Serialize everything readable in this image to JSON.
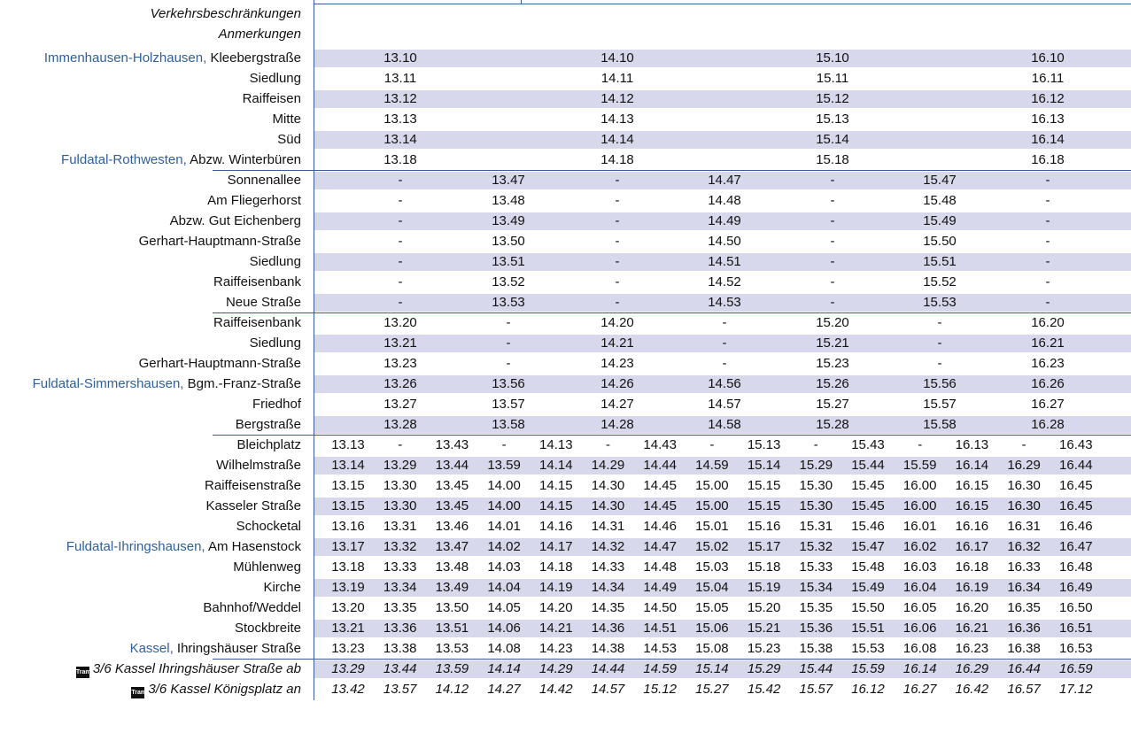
{
  "header": {
    "restrictions": "Verkehrsbeschränkungen",
    "notes": "Anmerkungen"
  },
  "tram_icon": "tram-icon",
  "colors": {
    "band": "#d7d8eb",
    "town": "#2f5f9e",
    "rule": "#3a5f98"
  },
  "rows": [
    {
      "town": "Immenhausen-Holzhausen, ",
      "stop": "Kleebergstraße",
      "mode": "A",
      "times": [
        "13.10",
        "14.10",
        "15.10",
        "16.10"
      ]
    },
    {
      "town": "",
      "stop": "Siedlung",
      "mode": "A",
      "times": [
        "13.11",
        "14.11",
        "15.11",
        "16.11"
      ]
    },
    {
      "town": "",
      "stop": "Raiffeisen",
      "mode": "A",
      "times": [
        "13.12",
        "14.12",
        "15.12",
        "16.12"
      ]
    },
    {
      "town": "",
      "stop": "Mitte",
      "mode": "A",
      "times": [
        "13.13",
        "14.13",
        "15.13",
        "16.13"
      ]
    },
    {
      "town": "",
      "stop": "Süd",
      "mode": "A",
      "times": [
        "13.14",
        "14.14",
        "15.14",
        "16.14"
      ]
    },
    {
      "town": "Fuldatal-Rothwesten, ",
      "stop": "Abzw. Winterbüren",
      "mode": "A",
      "times": [
        "13.18",
        "14.18",
        "15.18",
        "16.18"
      ],
      "sep": true
    },
    {
      "town": "",
      "stop": "Sonnenallee",
      "mode": "B",
      "times": [
        "-",
        "13.47",
        "-",
        "14.47",
        "-",
        "15.47",
        "-"
      ]
    },
    {
      "town": "",
      "stop": "Am Fliegerhorst",
      "mode": "B",
      "times": [
        "-",
        "13.48",
        "-",
        "14.48",
        "-",
        "15.48",
        "-"
      ]
    },
    {
      "town": "",
      "stop": "Abzw. Gut Eichenberg",
      "mode": "B",
      "times": [
        "-",
        "13.49",
        "-",
        "14.49",
        "-",
        "15.49",
        "-"
      ]
    },
    {
      "town": "",
      "stop": "Gerhart-Hauptmann-Straße",
      "mode": "B",
      "times": [
        "-",
        "13.50",
        "-",
        "14.50",
        "-",
        "15.50",
        "-"
      ]
    },
    {
      "town": "",
      "stop": "Siedlung",
      "mode": "B",
      "times": [
        "-",
        "13.51",
        "-",
        "14.51",
        "-",
        "15.51",
        "-"
      ]
    },
    {
      "town": "",
      "stop": "Raiffeisenbank",
      "mode": "B",
      "times": [
        "-",
        "13.52",
        "-",
        "14.52",
        "-",
        "15.52",
        "-"
      ]
    },
    {
      "town": "",
      "stop": "Neue Straße",
      "mode": "B",
      "times": [
        "-",
        "13.53",
        "-",
        "14.53",
        "-",
        "15.53",
        "-"
      ],
      "sep": true
    },
    {
      "town": "",
      "stop": "Raiffeisenbank",
      "mode": "B",
      "times": [
        "13.20",
        "-",
        "14.20",
        "-",
        "15.20",
        "-",
        "16.20"
      ]
    },
    {
      "town": "",
      "stop": "Siedlung",
      "mode": "B",
      "times": [
        "13.21",
        "-",
        "14.21",
        "-",
        "15.21",
        "-",
        "16.21"
      ]
    },
    {
      "town": "",
      "stop": "Gerhart-Hauptmann-Straße",
      "mode": "B",
      "times": [
        "13.23",
        "-",
        "14.23",
        "-",
        "15.23",
        "-",
        "16.23"
      ]
    },
    {
      "town": "Fuldatal-Simmershausen, ",
      "stop": "Bgm.-Franz-Straße",
      "mode": "B",
      "times": [
        "13.26",
        "13.56",
        "14.26",
        "14.56",
        "15.26",
        "15.56",
        "16.26"
      ]
    },
    {
      "town": "",
      "stop": "Friedhof",
      "mode": "B",
      "times": [
        "13.27",
        "13.57",
        "14.27",
        "14.57",
        "15.27",
        "15.57",
        "16.27"
      ]
    },
    {
      "town": "",
      "stop": "Bergstraße",
      "mode": "B",
      "times": [
        "13.28",
        "13.58",
        "14.28",
        "14.58",
        "15.28",
        "15.58",
        "16.28"
      ],
      "sep": true
    },
    {
      "town": "",
      "stop": "Bleichplatz",
      "mode": "C",
      "times": [
        "13.13",
        "-",
        "13.43",
        "-",
        "14.13",
        "-",
        "14.43",
        "-",
        "15.13",
        "-",
        "15.43",
        "-",
        "16.13",
        "-",
        "16.43"
      ]
    },
    {
      "town": "",
      "stop": "Wilhelmstraße",
      "mode": "C",
      "times": [
        "13.14",
        "13.29",
        "13.44",
        "13.59",
        "14.14",
        "14.29",
        "14.44",
        "14.59",
        "15.14",
        "15.29",
        "15.44",
        "15.59",
        "16.14",
        "16.29",
        "16.44"
      ]
    },
    {
      "town": "",
      "stop": "Raiffeisenstraße",
      "mode": "C",
      "times": [
        "13.15",
        "13.30",
        "13.45",
        "14.00",
        "14.15",
        "14.30",
        "14.45",
        "15.00",
        "15.15",
        "15.30",
        "15.45",
        "16.00",
        "16.15",
        "16.30",
        "16.45"
      ]
    },
    {
      "town": "",
      "stop": "Kasseler Straße",
      "mode": "C",
      "times": [
        "13.15",
        "13.30",
        "13.45",
        "14.00",
        "14.15",
        "14.30",
        "14.45",
        "15.00",
        "15.15",
        "15.30",
        "15.45",
        "16.00",
        "16.15",
        "16.30",
        "16.45"
      ]
    },
    {
      "town": "",
      "stop": "Schocketal",
      "mode": "C",
      "times": [
        "13.16",
        "13.31",
        "13.46",
        "14.01",
        "14.16",
        "14.31",
        "14.46",
        "15.01",
        "15.16",
        "15.31",
        "15.46",
        "16.01",
        "16.16",
        "16.31",
        "16.46"
      ]
    },
    {
      "town": "Fuldatal-Ihringshausen, ",
      "stop": "Am Hasenstock",
      "mode": "C",
      "times": [
        "13.17",
        "13.32",
        "13.47",
        "14.02",
        "14.17",
        "14.32",
        "14.47",
        "15.02",
        "15.17",
        "15.32",
        "15.47",
        "16.02",
        "16.17",
        "16.32",
        "16.47"
      ]
    },
    {
      "town": "",
      "stop": "Mühlenweg",
      "mode": "C",
      "times": [
        "13.18",
        "13.33",
        "13.48",
        "14.03",
        "14.18",
        "14.33",
        "14.48",
        "15.03",
        "15.18",
        "15.33",
        "15.48",
        "16.03",
        "16.18",
        "16.33",
        "16.48"
      ]
    },
    {
      "town": "",
      "stop": "Kirche",
      "mode": "C",
      "times": [
        "13.19",
        "13.34",
        "13.49",
        "14.04",
        "14.19",
        "14.34",
        "14.49",
        "15.04",
        "15.19",
        "15.34",
        "15.49",
        "16.04",
        "16.19",
        "16.34",
        "16.49"
      ]
    },
    {
      "town": "",
      "stop": "Bahnhof/Weddel",
      "mode": "C",
      "times": [
        "13.20",
        "13.35",
        "13.50",
        "14.05",
        "14.20",
        "14.35",
        "14.50",
        "15.05",
        "15.20",
        "15.35",
        "15.50",
        "16.05",
        "16.20",
        "16.35",
        "16.50"
      ]
    },
    {
      "town": "",
      "stop": "Stockbreite",
      "mode": "C",
      "times": [
        "13.21",
        "13.36",
        "13.51",
        "14.06",
        "14.21",
        "14.36",
        "14.51",
        "15.06",
        "15.21",
        "15.36",
        "15.51",
        "16.06",
        "16.21",
        "16.36",
        "16.51"
      ]
    },
    {
      "town": "Kassel, ",
      "stop": "Ihringshäuser Straße",
      "mode": "C",
      "times": [
        "13.23",
        "13.38",
        "13.53",
        "14.08",
        "14.23",
        "14.38",
        "14.53",
        "15.08",
        "15.23",
        "15.38",
        "15.53",
        "16.08",
        "16.23",
        "16.38",
        "16.53"
      ],
      "sep": true
    },
    {
      "town": "",
      "stop": "3/6 Kassel Ihringshäuser Straße ab",
      "tram": true,
      "italic": true,
      "mode": "C",
      "times": [
        "13.29",
        "13.44",
        "13.59",
        "14.14",
        "14.29",
        "14.44",
        "14.59",
        "15.14",
        "15.29",
        "15.44",
        "15.59",
        "16.14",
        "16.29",
        "16.44",
        "16.59"
      ]
    },
    {
      "town": "",
      "stop": "3/6 Kassel Königsplatz an",
      "tram": true,
      "italic": true,
      "mode": "C",
      "times": [
        "13.42",
        "13.57",
        "14.12",
        "14.27",
        "14.42",
        "14.57",
        "15.12",
        "15.27",
        "15.42",
        "15.57",
        "16.12",
        "16.27",
        "16.42",
        "16.57",
        "17.12"
      ]
    }
  ]
}
